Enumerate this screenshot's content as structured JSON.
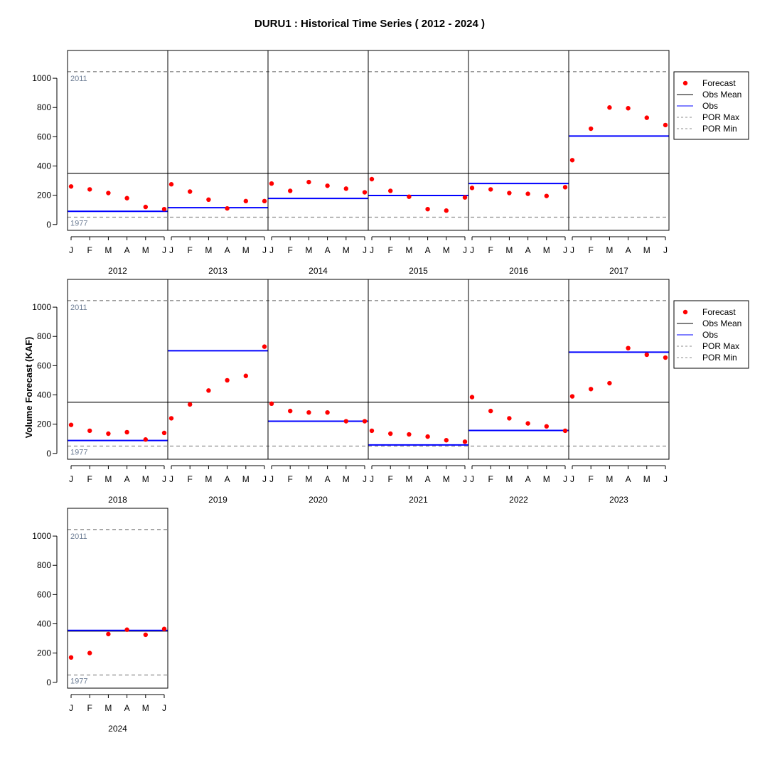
{
  "colors": {
    "forecast": "#ff0000",
    "obs": "#0000ff",
    "obs_mean": "#000000",
    "por_line": "#8c8c8c",
    "por_label": "#6f7f96",
    "frame": "#000000"
  },
  "chart_data": {
    "type": "scatter",
    "title": "DURU1 : Historical Time Series ( 2012 - 2024 )",
    "ylabel": "Volume Forecast (KAF)",
    "xlabel": "",
    "ylim": [
      -40,
      1190
    ],
    "y_ticks": [
      0,
      200,
      400,
      600,
      800,
      1000
    ],
    "month_labels": [
      "J",
      "F",
      "M",
      "A",
      "M",
      "J"
    ],
    "grid": false,
    "obs_mean": 350,
    "por_max": {
      "value": 1045,
      "label": "2011"
    },
    "por_min": {
      "value": 50,
      "label": "1977"
    },
    "legend_entries": [
      "Forecast",
      "Obs Mean",
      "Obs",
      "POR Max",
      "POR Min"
    ],
    "legend_placement": "right",
    "years": [
      {
        "year": "2012",
        "obs": 90,
        "forecast": [
          260,
          240,
          215,
          180,
          120,
          105
        ]
      },
      {
        "year": "2013",
        "obs": 115,
        "forecast": [
          275,
          225,
          170,
          110,
          160,
          160
        ]
      },
      {
        "year": "2014",
        "obs": 178,
        "forecast": [
          280,
          230,
          290,
          265,
          245,
          220
        ]
      },
      {
        "year": "2015",
        "obs": 198,
        "forecast": [
          310,
          230,
          190,
          105,
          95,
          185
        ]
      },
      {
        "year": "2016",
        "obs": 280,
        "forecast": [
          250,
          240,
          215,
          210,
          195,
          255
        ]
      },
      {
        "year": "2017",
        "obs": 605,
        "forecast": [
          440,
          655,
          800,
          795,
          730,
          680
        ]
      },
      {
        "year": "2018",
        "obs": 88,
        "forecast": [
          195,
          155,
          135,
          145,
          95,
          140
        ]
      },
      {
        "year": "2019",
        "obs": 702,
        "forecast": [
          240,
          335,
          430,
          500,
          530,
          730
        ]
      },
      {
        "year": "2020",
        "obs": 220,
        "forecast": [
          340,
          290,
          280,
          280,
          220,
          220
        ]
      },
      {
        "year": "2021",
        "obs": 58,
        "forecast": [
          155,
          135,
          130,
          115,
          90,
          80
        ]
      },
      {
        "year": "2022",
        "obs": 157,
        "forecast": [
          385,
          290,
          240,
          205,
          185,
          155
        ]
      },
      {
        "year": "2023",
        "obs": 692,
        "forecast": [
          390,
          440,
          480,
          720,
          675,
          655
        ]
      },
      {
        "year": "2024",
        "obs": 355,
        "forecast": [
          170,
          200,
          330,
          360,
          325,
          365
        ]
      }
    ]
  }
}
